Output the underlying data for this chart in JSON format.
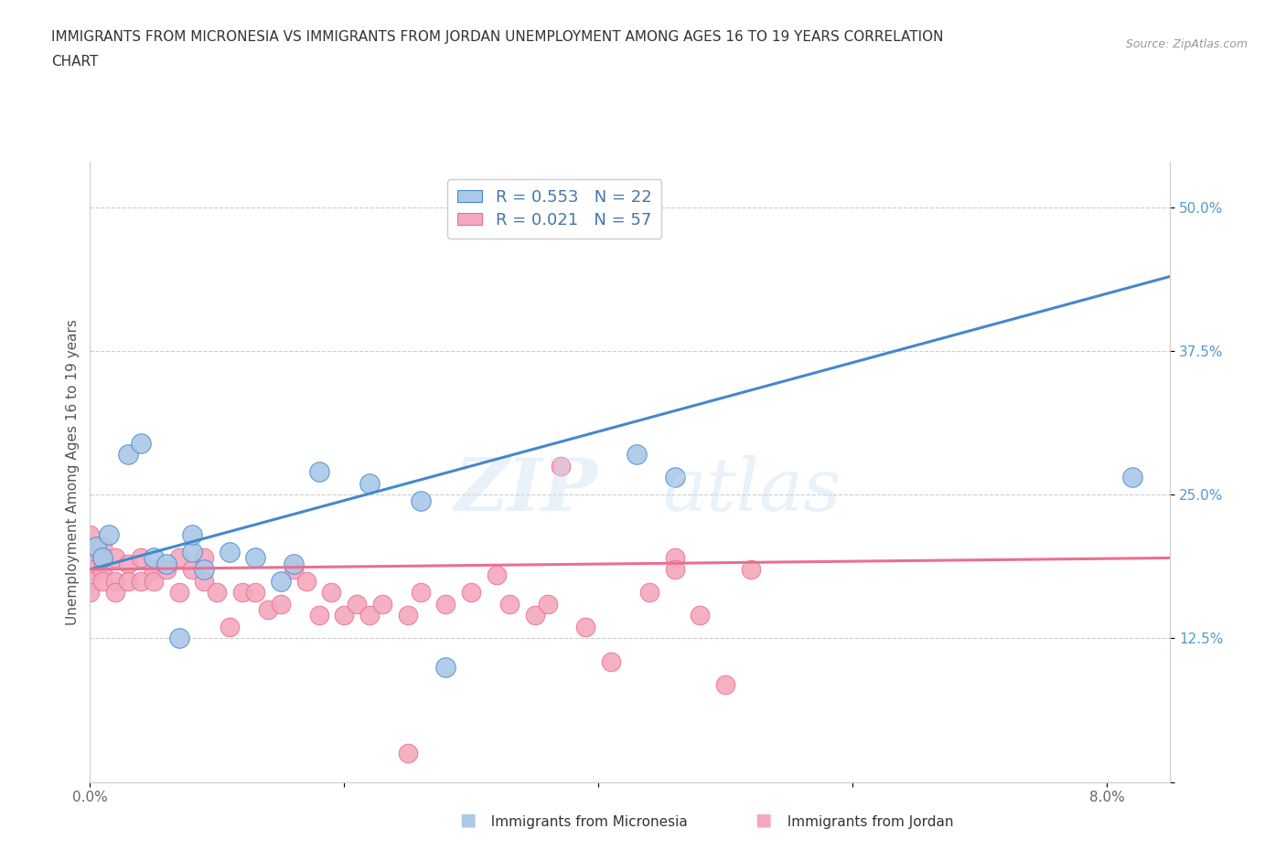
{
  "title_line1": "IMMIGRANTS FROM MICRONESIA VS IMMIGRANTS FROM JORDAN UNEMPLOYMENT AMONG AGES 16 TO 19 YEARS CORRELATION",
  "title_line2": "CHART",
  "source_text": "Source: ZipAtlas.com",
  "ylabel": "Unemployment Among Ages 16 to 19 years",
  "xlim": [
    0.0,
    0.085
  ],
  "ylim": [
    0.0,
    0.54
  ],
  "micronesia_color": "#aac8e8",
  "jordan_color": "#f4a8be",
  "micronesia_line_color": "#4488cc",
  "jordan_line_color": "#e87090",
  "tick_color": "#5599cc",
  "R_micronesia": 0.553,
  "N_micronesia": 22,
  "R_jordan": 0.021,
  "N_jordan": 57,
  "legend_label_micronesia": "Immigrants from Micronesia",
  "legend_label_jordan": "Immigrants from Jordan",
  "micronesia_x": [
    0.0005,
    0.001,
    0.0015,
    0.003,
    0.004,
    0.005,
    0.006,
    0.007,
    0.008,
    0.008,
    0.009,
    0.011,
    0.013,
    0.015,
    0.016,
    0.018,
    0.022,
    0.026,
    0.028,
    0.043,
    0.046,
    0.082
  ],
  "micronesia_y": [
    0.205,
    0.195,
    0.215,
    0.285,
    0.295,
    0.195,
    0.19,
    0.125,
    0.2,
    0.215,
    0.185,
    0.2,
    0.195,
    0.175,
    0.19,
    0.27,
    0.26,
    0.245,
    0.1,
    0.285,
    0.265,
    0.265
  ],
  "jordan_x": [
    0.0,
    0.0,
    0.0,
    0.0,
    0.0,
    0.0,
    0.001,
    0.001,
    0.001,
    0.001,
    0.002,
    0.002,
    0.002,
    0.003,
    0.003,
    0.004,
    0.004,
    0.005,
    0.005,
    0.006,
    0.007,
    0.007,
    0.008,
    0.009,
    0.009,
    0.01,
    0.011,
    0.012,
    0.013,
    0.014,
    0.015,
    0.016,
    0.017,
    0.018,
    0.019,
    0.02,
    0.021,
    0.022,
    0.023,
    0.025,
    0.026,
    0.028,
    0.03,
    0.032,
    0.033,
    0.035,
    0.037,
    0.039,
    0.041,
    0.044,
    0.046,
    0.048,
    0.05,
    0.052,
    0.046,
    0.036,
    0.025
  ],
  "jordan_y": [
    0.2,
    0.195,
    0.185,
    0.175,
    0.165,
    0.215,
    0.205,
    0.195,
    0.185,
    0.175,
    0.195,
    0.175,
    0.165,
    0.19,
    0.175,
    0.195,
    0.175,
    0.185,
    0.175,
    0.185,
    0.195,
    0.165,
    0.185,
    0.195,
    0.175,
    0.165,
    0.135,
    0.165,
    0.165,
    0.15,
    0.155,
    0.185,
    0.175,
    0.145,
    0.165,
    0.145,
    0.155,
    0.145,
    0.155,
    0.145,
    0.165,
    0.155,
    0.165,
    0.18,
    0.155,
    0.145,
    0.275,
    0.135,
    0.105,
    0.165,
    0.195,
    0.145,
    0.085,
    0.185,
    0.185,
    0.155,
    0.025
  ],
  "mic_line_x0": 0.0,
  "mic_line_y0": 0.185,
  "mic_line_x1": 0.085,
  "mic_line_y1": 0.44,
  "jor_line_x0": 0.0,
  "jor_line_y0": 0.185,
  "jor_line_x1": 0.085,
  "jor_line_y1": 0.195
}
